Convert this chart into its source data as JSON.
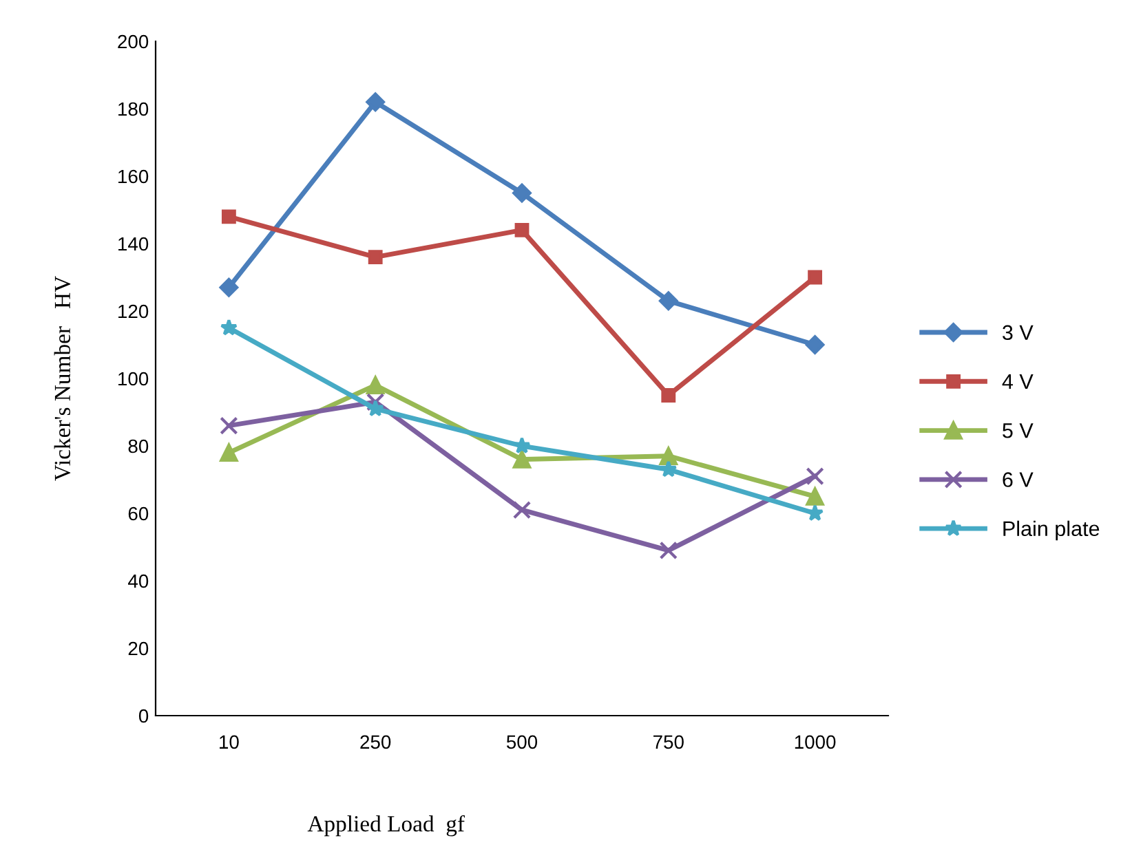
{
  "chart_data": {
    "type": "line",
    "xlabel": "Applied Load  gf",
    "ylabel": "Vicker's Number   HV",
    "categories": [
      "10",
      "250",
      "500",
      "750",
      "1000"
    ],
    "series": [
      {
        "name": "3 V",
        "color": "#4a7ebb",
        "marker": "diamond",
        "values": [
          127,
          182,
          155,
          123,
          110
        ]
      },
      {
        "name": "4 V",
        "color": "#be4b48",
        "marker": "square",
        "values": [
          148,
          136,
          144,
          95,
          130
        ]
      },
      {
        "name": "5 V",
        "color": "#98b954",
        "marker": "triangle",
        "values": [
          78,
          98,
          76,
          77,
          65
        ]
      },
      {
        "name": "6 V",
        "color": "#7d60a0",
        "marker": "cross",
        "values": [
          86,
          93,
          61,
          49,
          71
        ]
      },
      {
        "name": "Plain plate",
        "color": "#46aac5",
        "marker": "star",
        "values": [
          115,
          91,
          80,
          73,
          60
        ]
      }
    ],
    "ylim": [
      0,
      200
    ],
    "yticks": [
      0,
      20,
      40,
      60,
      80,
      100,
      120,
      140,
      160,
      180,
      200
    ],
    "grid": false,
    "legend": "right",
    "line_style": "solid"
  }
}
